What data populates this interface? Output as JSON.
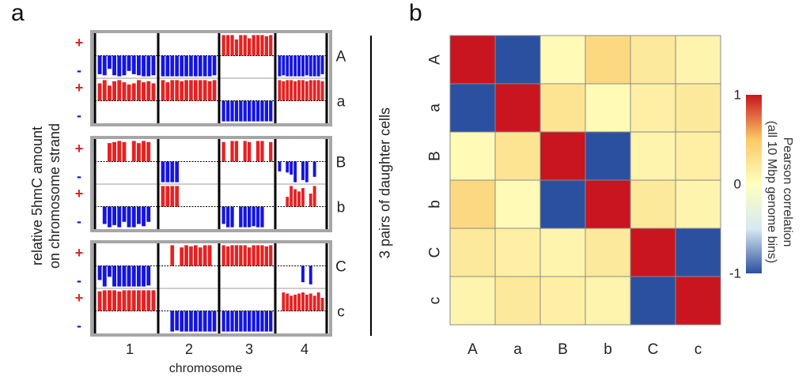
{
  "panel_a": {
    "letter": "a",
    "ylabel_line1": "relative 5hmC amount",
    "ylabel_line2": "on chromosome strand",
    "xlabel": "chromosome",
    "right_label": "3 pairs of daughter cells",
    "plus": "+",
    "minus": "-",
    "chromosomes": [
      "1",
      "2",
      "3",
      "4"
    ]
  },
  "panel_b": {
    "letter": "b"
  },
  "chart_data": [
    {
      "type": "bar",
      "description_source": "panel a: per-cell strand 5hmC barplots (3 pairs of daughter cells)",
      "xlabel": "chromosome",
      "categories": [
        "1",
        "2",
        "3",
        "4"
      ],
      "colors": {
        "plus_strand": "#e52222",
        "minus_strand": "#1515e0"
      },
      "cells": [
        {
          "name": "A",
          "strand": [
            "minus",
            "minus",
            "plus",
            "minus"
          ],
          "values": [
            [
              0.85,
              0.9,
              0.6,
              0.9,
              0.95,
              0.9,
              0.7,
              0.85,
              0.9,
              0.95,
              0.95,
              0.9
            ],
            [
              0.95,
              0.95,
              0.95,
              0.95,
              0.95,
              0.95,
              0.95,
              0.95,
              0.95,
              0.95,
              0.95,
              0.9
            ],
            [
              0.95,
              0.95,
              0.95,
              0.75,
              0.95,
              0.95,
              0.8,
              0.95,
              0.95,
              0.95,
              0.9,
              0.95
            ],
            [
              0.95,
              0.9,
              0.95,
              0.95,
              0.95,
              0.95,
              0.95,
              0.9,
              0.95,
              0.95,
              0.95,
              0.85
            ]
          ]
        },
        {
          "name": "a",
          "strand": [
            "plus",
            "plus",
            "minus",
            "plus"
          ],
          "values": [
            [
              0.8,
              0.95,
              0.7,
              0.9,
              0.95,
              0.85,
              0.75,
              0.8,
              0.95,
              0.85,
              0.9,
              0.8
            ],
            [
              0.95,
              0.85,
              0.95,
              0.95,
              0.9,
              0.95,
              0.95,
              0.95,
              0.95,
              0.95,
              0.9,
              0.95
            ],
            [
              0.95,
              0.95,
              0.95,
              0.95,
              0.95,
              0.95,
              0.95,
              0.95,
              0.95,
              0.95,
              0.95,
              0.95
            ],
            [
              0.95,
              0.9,
              0.95,
              0.95,
              0.9,
              0.95,
              0.95,
              0.9,
              0.95,
              0.95,
              0.95,
              0.9
            ]
          ]
        },
        {
          "name": "B",
          "strand": [
            "plus",
            "minus",
            "plus",
            "minus"
          ],
          "values": [
            [
              0.0,
              0.0,
              0.85,
              0.9,
              0.95,
              0.9,
              0.0,
              0.95,
              0.85,
              0.95,
              0.9,
              0.0
            ],
            [
              0.95,
              0.95,
              0.95,
              0.95,
              0.0,
              0.0,
              0.0,
              0.0,
              0.0,
              0.0,
              0.0,
              0.0
            ],
            [
              0.9,
              0.0,
              0.95,
              0.95,
              0.0,
              0.95,
              0.9,
              0.0,
              0.95,
              0.95,
              0.0,
              0.9
            ],
            [
              0.45,
              0.0,
              0.5,
              0.6,
              0.95,
              0.0,
              0.85,
              0.95,
              0.0,
              0.7,
              0.0,
              0.0
            ]
          ]
        },
        {
          "name": "b",
          "strand": [
            "minus",
            "plus",
            "minus",
            "plus"
          ],
          "values": [
            [
              0.0,
              0.8,
              0.95,
              0.85,
              0.95,
              0.7,
              0.95,
              0.95,
              0.8,
              0.9,
              0.7,
              0.0
            ],
            [
              0.95,
              0.95,
              0.95,
              0.95,
              0.0,
              0.0,
              0.0,
              0.0,
              0.0,
              0.0,
              0.0,
              0.0
            ],
            [
              0.8,
              0.95,
              0.95,
              0.0,
              0.95,
              0.95,
              0.95,
              0.9,
              0.95,
              0.95,
              0.0,
              0.0
            ],
            [
              0.0,
              0.0,
              0.45,
              0.95,
              0.8,
              0.7,
              0.85,
              0.0,
              0.6,
              0.95,
              0.0,
              0.0
            ]
          ]
        },
        {
          "name": "C",
          "strand": [
            "minus",
            "plus",
            "plus",
            "minus"
          ],
          "values": [
            [
              0.65,
              0.95,
              0.5,
              0.95,
              0.95,
              0.95,
              0.95,
              0.95,
              0.95,
              0.95,
              0.9,
              0.0
            ],
            [
              0.0,
              0.0,
              0.95,
              0.0,
              0.85,
              0.95,
              0.9,
              0.95,
              0.85,
              0.95,
              0.95,
              0.0
            ],
            [
              0.95,
              0.9,
              0.95,
              0.95,
              0.95,
              0.95,
              0.85,
              0.95,
              0.95,
              0.95,
              0.9,
              0.95
            ],
            [
              0.0,
              0.0,
              0.0,
              0.0,
              0.0,
              0.0,
              0.75,
              0.0,
              0.85,
              0.0,
              0.0,
              0.0
            ]
          ]
        },
        {
          "name": "c",
          "strand": [
            "plus",
            "minus",
            "minus",
            "plus"
          ],
          "values": [
            [
              0.9,
              0.95,
              0.95,
              0.95,
              0.9,
              0.95,
              0.95,
              0.95,
              0.95,
              0.95,
              0.95,
              0.95
            ],
            [
              0.0,
              0.0,
              0.95,
              0.9,
              0.95,
              0.95,
              0.95,
              0.95,
              0.95,
              0.95,
              0.95,
              0.95
            ],
            [
              0.95,
              0.95,
              0.95,
              0.95,
              0.95,
              0.95,
              0.95,
              0.95,
              0.95,
              0.95,
              0.95,
              0.95
            ],
            [
              0.0,
              0.85,
              0.8,
              0.7,
              0.75,
              0.8,
              0.85,
              0.75,
              0.8,
              0.7,
              0.85,
              0.6
            ]
          ]
        }
      ]
    },
    {
      "type": "heatmap",
      "description_source": "panel b: correlation matrix",
      "x_categories": [
        "A",
        "a",
        "B",
        "b",
        "C",
        "c"
      ],
      "y_categories": [
        "A",
        "a",
        "B",
        "b",
        "C",
        "c"
      ],
      "values": [
        [
          1.0,
          -1.0,
          0.05,
          0.35,
          0.2,
          0.1
        ],
        [
          -1.0,
          1.0,
          0.25,
          0.05,
          0.15,
          0.2
        ],
        [
          0.05,
          0.25,
          1.0,
          -1.0,
          0.1,
          0.15
        ],
        [
          0.35,
          0.05,
          -1.0,
          1.0,
          0.2,
          0.1
        ],
        [
          0.2,
          0.15,
          0.1,
          0.2,
          1.0,
          -1.0
        ],
        [
          0.1,
          0.2,
          0.15,
          0.1,
          -1.0,
          1.0
        ]
      ],
      "colorbar": {
        "label_line1": "Pearson correlation",
        "label_line2": "(all 10 Mbp genome bins)",
        "ticks": [
          "1",
          "0",
          "-1"
        ],
        "tick_values": [
          1,
          0,
          -1
        ],
        "range": [
          -1,
          1
        ],
        "colors": [
          "#2c50a0",
          "#d7e9f1",
          "#ffffbf",
          "#fbc966",
          "#c8151f"
        ]
      }
    }
  ]
}
